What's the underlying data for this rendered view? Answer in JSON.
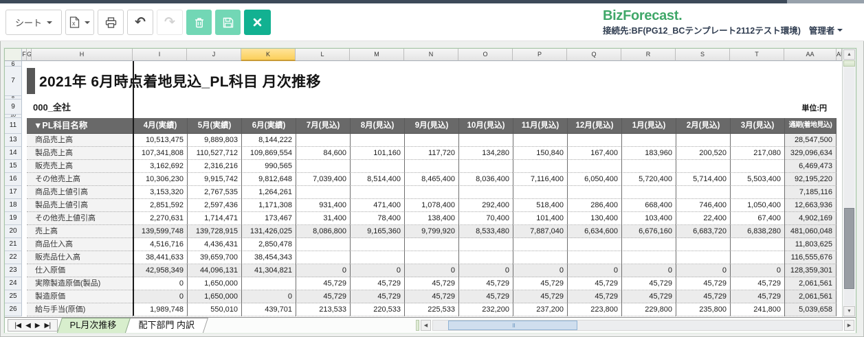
{
  "toolbar": {
    "sheet_label": "シート"
  },
  "icons": {
    "caret_down": "▼",
    "excel_letter": "x",
    "undo": "↶",
    "redo": "↷",
    "nav_first": "|◀",
    "nav_prev": "◀",
    "nav_next": "▶",
    "nav_last": "▶|",
    "up": "▲",
    "down": "▼",
    "left": "◀",
    "right": "▶"
  },
  "brand": {
    "logo": "BizForecast.",
    "connection": "接続先:BF(PG12_BCテンプレート2112テスト環境)",
    "role": "管理者"
  },
  "sheet": {
    "title": "2021年 6月時点着地見込_PL科目 月次推移",
    "entity": "000_全社",
    "unit_label": "単位:円",
    "column_letters": [
      "F",
      "G",
      "H",
      "I",
      "J",
      "K",
      "L",
      "M",
      "N",
      "O",
      "P",
      "Q",
      "R",
      "S",
      "T",
      "AA",
      "AB"
    ],
    "highlighted_column": "K",
    "pre_rows": [
      "6",
      "7",
      "8",
      "9",
      "10",
      "11"
    ]
  },
  "table": {
    "name_header": "▼PL科目名称",
    "col_headers": [
      "4月(実績)",
      "5月(実績)",
      "6月(実績)",
      "7月(見込)",
      "8月(見込)",
      "9月(見込)",
      "10月(見込)",
      "11月(見込)",
      "12月(見込)",
      "1月(見込)",
      "2月(見込)",
      "3月(見込)",
      "通期(着地見込)"
    ],
    "rows": [
      {
        "num": "13",
        "name": "商品売上高",
        "shaded": false,
        "values": [
          "10,513,475",
          "9,889,803",
          "8,144,222",
          "",
          "",
          "",
          "",
          "",
          "",
          "",
          "",
          "",
          "28,547,500"
        ]
      },
      {
        "num": "14",
        "name": "製品売上高",
        "shaded": false,
        "values": [
          "107,341,808",
          "110,527,712",
          "109,869,554",
          "84,600",
          "101,160",
          "117,720",
          "134,280",
          "150,840",
          "167,400",
          "183,960",
          "200,520",
          "217,080",
          "329,096,634"
        ]
      },
      {
        "num": "15",
        "name": "販売売上高",
        "shaded": false,
        "values": [
          "3,162,692",
          "2,316,216",
          "990,565",
          "",
          "",
          "",
          "",
          "",
          "",
          "",
          "",
          "",
          "6,469,473"
        ]
      },
      {
        "num": "16",
        "name": "その他売上高",
        "shaded": false,
        "values": [
          "10,306,230",
          "9,915,742",
          "9,812,648",
          "7,039,400",
          "8,514,400",
          "8,465,400",
          "8,036,400",
          "7,116,400",
          "6,050,400",
          "5,720,400",
          "5,714,400",
          "5,503,400",
          "92,195,220"
        ]
      },
      {
        "num": "17",
        "name": "商品売上値引高",
        "shaded": false,
        "values": [
          "3,153,320",
          "2,767,535",
          "1,264,261",
          "",
          "",
          "",
          "",
          "",
          "",
          "",
          "",
          "",
          "7,185,116"
        ]
      },
      {
        "num": "18",
        "name": "製品売上値引高",
        "shaded": false,
        "values": [
          "2,851,592",
          "2,597,436",
          "1,171,308",
          "931,400",
          "471,400",
          "1,078,400",
          "292,400",
          "518,400",
          "286,400",
          "668,400",
          "746,400",
          "1,050,400",
          "12,663,936"
        ]
      },
      {
        "num": "19",
        "name": "その他売上値引高",
        "shaded": false,
        "values": [
          "2,270,631",
          "1,714,471",
          "173,467",
          "31,400",
          "78,400",
          "138,400",
          "70,400",
          "101,400",
          "130,400",
          "103,400",
          "22,400",
          "67,400",
          "4,902,169"
        ]
      },
      {
        "num": "20",
        "name": "売上高",
        "shaded": true,
        "values": [
          "139,599,748",
          "139,728,915",
          "131,426,025",
          "8,086,800",
          "9,165,360",
          "9,799,920",
          "8,533,480",
          "7,887,040",
          "6,634,600",
          "6,676,160",
          "6,683,720",
          "6,838,280",
          "481,060,048"
        ]
      },
      {
        "num": "21",
        "name": "商品仕入高",
        "shaded": false,
        "values": [
          "4,516,716",
          "4,436,431",
          "2,850,478",
          "",
          "",
          "",
          "",
          "",
          "",
          "",
          "",
          "",
          "11,803,625"
        ]
      },
      {
        "num": "22",
        "name": "販売品仕入高",
        "shaded": false,
        "values": [
          "38,441,633",
          "39,659,700",
          "38,454,343",
          "",
          "",
          "",
          "",
          "",
          "",
          "",
          "",
          "",
          "116,555,676"
        ]
      },
      {
        "num": "23",
        "name": "仕入原価",
        "shaded": true,
        "values": [
          "42,958,349",
          "44,096,131",
          "41,304,821",
          "0",
          "0",
          "0",
          "0",
          "0",
          "0",
          "0",
          "0",
          "0",
          "128,359,301"
        ]
      },
      {
        "num": "24",
        "name": "実際製造原価(製品)",
        "shaded": false,
        "values": [
          "0",
          "1,650,000",
          "",
          "45,729",
          "45,729",
          "45,729",
          "45,729",
          "45,729",
          "45,729",
          "45,729",
          "45,729",
          "45,729",
          "2,061,561"
        ]
      },
      {
        "num": "25",
        "name": "製造原価",
        "shaded": true,
        "values": [
          "0",
          "1,650,000",
          "0",
          "45,729",
          "45,729",
          "45,729",
          "45,729",
          "45,729",
          "45,729",
          "45,729",
          "45,729",
          "45,729",
          "2,061,561"
        ]
      },
      {
        "num": "26",
        "name": "給与手当(原価)",
        "shaded": false,
        "values": [
          "1,989,748",
          "550,010",
          "439,701",
          "213,533",
          "220,533",
          "225,533",
          "232,200",
          "237,200",
          "223,800",
          "229,800",
          "235,800",
          "241,800",
          "5,039,658"
        ]
      }
    ]
  },
  "tabs": [
    {
      "label": "PL月次推移",
      "active": true
    },
    {
      "label": "配下部門 内訳",
      "active": false
    }
  ],
  "colors": {
    "accent_teal": "#12b191",
    "mint": "#72d7b5",
    "logo_green": "#3fa768",
    "table_header_gray": "#696969",
    "highlight_yellow": "#fbcf5a",
    "active_tab_green": "#d8eecd",
    "navy_text": "#2f3c50"
  }
}
